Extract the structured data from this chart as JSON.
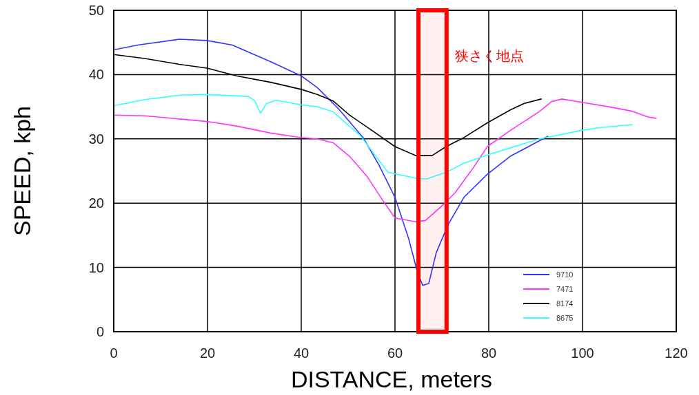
{
  "chart_data": {
    "type": "line",
    "xlabel": "DISTANCE, meters",
    "ylabel": "SPEED, kph",
    "xlim": [
      0,
      120
    ],
    "xticks": [
      0,
      20,
      40,
      60,
      80,
      100,
      120
    ],
    "ylim": [
      0,
      50
    ],
    "yticks": [
      0,
      10,
      20,
      30,
      40,
      50
    ],
    "grid": true,
    "legend": "bottom right",
    "line_style": "solid",
    "bands": [
      {
        "axis": "x",
        "from": 65,
        "to": 71,
        "label": "狭さく地点",
        "color": "#ff0000"
      }
    ],
    "series": [
      {
        "name": "9710",
        "color": "#3333ff",
        "x": [
          0.3,
          5.1,
          14,
          19.9,
          25.3,
          33.5,
          40,
          43.4,
          47.8,
          53.2,
          56.6,
          60,
          62.9,
          64.7,
          65.9,
          67.2,
          68.8,
          71.3,
          74.7,
          79.7,
          84.6,
          88.5,
          92.6
        ],
        "values": [
          43.9,
          44.6,
          45.5,
          45.3,
          44.6,
          42,
          39.8,
          38,
          34.8,
          30.2,
          25.9,
          20.9,
          14.5,
          9.5,
          7.2,
          7.5,
          12.3,
          16.6,
          20.9,
          24.5,
          27.3,
          28.8,
          30.4
        ]
      },
      {
        "name": "7471",
        "color": "#ff33ff",
        "x": [
          0.3,
          6.6,
          14,
          19.9,
          26.2,
          33.5,
          40,
          43.4,
          46.8,
          50.3,
          54.1,
          57.6,
          60,
          64.4,
          66.5,
          69.9,
          72.8,
          76.8,
          79.7,
          84.6,
          90.9,
          93.4,
          95.6,
          99.7,
          105.6,
          110.6,
          114,
          115.7
        ],
        "values": [
          33.7,
          33.6,
          33.1,
          32.7,
          32,
          30.9,
          30.2,
          30,
          29.4,
          27.3,
          24.1,
          20.2,
          17.7,
          17.1,
          17.3,
          19.5,
          21.6,
          25.6,
          28.8,
          31.3,
          34.3,
          35.8,
          36.2,
          35.7,
          35,
          34.3,
          33.4,
          33.2
        ]
      },
      {
        "name": "8174",
        "color": "#000000",
        "x": [
          0.3,
          6.6,
          14,
          19.9,
          26.2,
          33.5,
          40,
          43.4,
          46.8,
          50.3,
          55.1,
          60,
          64.4,
          67.9,
          70.9,
          74.7,
          79.7,
          84.6,
          87.5,
          91.2
        ],
        "values": [
          43.1,
          42.5,
          41.6,
          41,
          39.8,
          38.8,
          37.7,
          36.9,
          35.9,
          33.7,
          31.3,
          28.8,
          27.4,
          27.4,
          28.8,
          30.2,
          32.5,
          34.5,
          35.5,
          36.2
        ]
      },
      {
        "name": "8675",
        "color": "#33ffff",
        "x": [
          0.3,
          6.6,
          14,
          19.9,
          28.7,
          30.1,
          31.3,
          32.6,
          34.6,
          40,
          43.4,
          46.8,
          52.6,
          58.5,
          65,
          66.9,
          70.9,
          74.7,
          79.7,
          84.6,
          90.9,
          99.7,
          104.1,
          110.6
        ],
        "values": [
          35.2,
          36.1,
          36.8,
          36.9,
          36.6,
          35.9,
          34,
          35.5,
          36,
          35.3,
          35,
          34.2,
          30.5,
          24.8,
          23.8,
          23.8,
          24.8,
          26.2,
          27.5,
          28.6,
          30,
          31.3,
          31.8,
          32.2
        ]
      }
    ]
  }
}
